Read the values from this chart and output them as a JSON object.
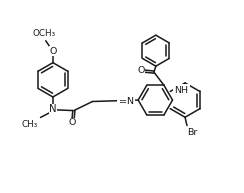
{
  "bg_color": "#ffffff",
  "line_color": "#1a1a1a",
  "line_width": 1.1,
  "font_size": 6.8,
  "fig_width": 2.44,
  "fig_height": 1.93,
  "dpi": 100,
  "xlim": [
    0,
    10.2
  ],
  "ylim": [
    0,
    8.1
  ]
}
